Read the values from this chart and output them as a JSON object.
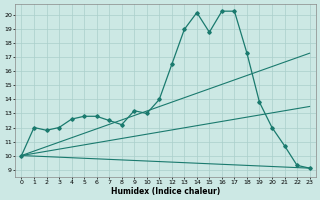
{
  "xlabel": "Humidex (Indice chaleur)",
  "background_color": "#cce8e4",
  "line_color": "#1a7a6e",
  "grid_color": "#aacfcb",
  "xlim": [
    -0.5,
    23.5
  ],
  "ylim": [
    8.5,
    20.8
  ],
  "yticks": [
    9,
    10,
    11,
    12,
    13,
    14,
    15,
    16,
    17,
    18,
    19,
    20
  ],
  "xticks": [
    0,
    1,
    2,
    3,
    4,
    5,
    6,
    7,
    8,
    9,
    10,
    11,
    12,
    13,
    14,
    15,
    16,
    17,
    18,
    19,
    20,
    21,
    22,
    23
  ],
  "main_series": {
    "x": [
      0,
      1,
      2,
      3,
      4,
      5,
      6,
      7,
      8,
      9,
      10,
      11,
      12,
      13,
      14,
      15,
      16,
      17,
      18,
      19,
      20,
      21,
      22,
      23
    ],
    "y": [
      10.0,
      12.0,
      11.8,
      12.0,
      12.6,
      12.8,
      12.8,
      12.5,
      12.2,
      13.2,
      13.0,
      14.0,
      16.5,
      19.0,
      20.2,
      18.8,
      20.3,
      20.3,
      17.3,
      13.8,
      12.0,
      10.7,
      9.3,
      9.1
    ]
  },
  "straight_lines": [
    {
      "x": [
        0,
        23
      ],
      "y": [
        10.0,
        9.1
      ]
    },
    {
      "x": [
        0,
        23
      ],
      "y": [
        10.0,
        17.3
      ]
    },
    {
      "x": [
        0,
        23
      ],
      "y": [
        10.0,
        13.5
      ]
    }
  ]
}
